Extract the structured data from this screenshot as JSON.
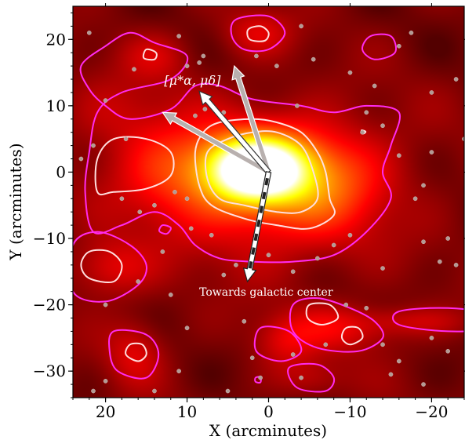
{
  "chart_data": {
    "type": "heatmap",
    "xlabel": "X (arcminutes)",
    "ylabel": "Y (arcminutes)",
    "xlim": [
      24,
      -24
    ],
    "ylim": [
      -34,
      25
    ],
    "x_ticks": [
      20,
      10,
      0,
      -10,
      -20
    ],
    "x_tick_labels": [
      "20",
      "10",
      "0",
      "−10",
      "−20"
    ],
    "y_ticks": [
      20,
      10,
      0,
      -10,
      -20,
      -30
    ],
    "y_tick_labels": [
      "20",
      "10",
      "0",
      "−10",
      "−20",
      "−30"
    ],
    "grid": false,
    "colormap": "hot",
    "peak_center": [
      0.5,
      0.2
    ],
    "density_blobs": [
      {
        "x": 1.5,
        "y": 0.5,
        "sx": 4.0,
        "sy": 3.2,
        "amp": 1.0
      },
      {
        "x": 0.0,
        "y": -2.0,
        "sx": 9.0,
        "sy": 7.0,
        "amp": 0.3
      },
      {
        "x": 12.0,
        "y": 0.5,
        "sx": 5.0,
        "sy": 5.0,
        "amp": 0.18
      },
      {
        "x": -7.0,
        "y": -1.0,
        "sx": 5.0,
        "sy": 5.0,
        "amp": 0.16
      },
      {
        "x": 19.5,
        "y": -14.5,
        "sx": 3.5,
        "sy": 3.0,
        "amp": 0.15
      },
      {
        "x": -8.0,
        "y": -23.5,
        "sx": 5.5,
        "sy": 2.5,
        "amp": 0.14
      },
      {
        "x": 16.5,
        "y": -27.0,
        "sx": 2.5,
        "sy": 3.5,
        "amp": 0.13
      },
      {
        "x": 1.5,
        "y": 21.0,
        "sx": 3.0,
        "sy": 2.5,
        "amp": 0.13
      },
      {
        "x": 14.0,
        "y": 17.5,
        "sx": 3.0,
        "sy": 2.5,
        "amp": 0.1
      },
      {
        "x": -2.0,
        "y": -26.0,
        "sx": 2.5,
        "sy": 2.5,
        "amp": 0.1
      },
      {
        "x": -5.0,
        "y": -31.0,
        "sx": 3.0,
        "sy": 2.0,
        "amp": 0.09
      },
      {
        "x": -18.0,
        "y": -22.5,
        "sx": 5.0,
        "sy": 1.5,
        "amp": 0.09
      },
      {
        "x": 19.0,
        "y": 9.0,
        "sx": 5.0,
        "sy": 4.0,
        "amp": 0.08
      }
    ],
    "contours": [
      {
        "color": "#ff2bf0",
        "points": [
          [
            2,
            11
          ],
          [
            6,
            13
          ],
          [
            9,
            13
          ],
          [
            12,
            9.5
          ],
          [
            17,
            8
          ],
          [
            20,
            10
          ],
          [
            22,
            12.5
          ],
          [
            23,
            16
          ],
          [
            20,
            19
          ],
          [
            17,
            21
          ],
          [
            14,
            19.5
          ],
          [
            10,
            17.5
          ],
          [
            12,
            14
          ],
          [
            18,
            12
          ],
          [
            21,
            9
          ],
          [
            22,
            3
          ],
          [
            22.5,
            -3
          ],
          [
            21.5,
            -9
          ],
          [
            18,
            -8
          ],
          [
            14,
            -6
          ],
          [
            11,
            -8
          ],
          [
            9,
            -11
          ],
          [
            6,
            -13
          ],
          [
            2,
            -13.5
          ],
          [
            -3,
            -13.5
          ],
          [
            -8,
            -12.5
          ],
          [
            -12,
            -9
          ],
          [
            -15,
            -4
          ],
          [
            -14,
            0
          ],
          [
            -15,
            4
          ],
          [
            -16,
            9
          ],
          [
            -12,
            10
          ],
          [
            -8,
            9
          ],
          [
            -4,
            10
          ]
        ]
      },
      {
        "color": "#ff2bf0",
        "points": [
          [
            24,
            -11
          ],
          [
            21,
            -9
          ],
          [
            17,
            -11
          ],
          [
            15,
            -14
          ],
          [
            16,
            -17
          ],
          [
            20,
            -19.5
          ],
          [
            24,
            -18
          ]
        ]
      },
      {
        "color": "#ff2bf0",
        "points": [
          [
            -3,
            -20
          ],
          [
            -6,
            -19
          ],
          [
            -10,
            -20.5
          ],
          [
            -13,
            -22.5
          ],
          [
            -14,
            -25
          ],
          [
            -11,
            -27
          ],
          [
            -6,
            -26.5
          ],
          [
            -3,
            -24
          ]
        ]
      },
      {
        "color": "#ff2bf0",
        "points": [
          [
            -16,
            -21
          ],
          [
            -22,
            -20.5
          ],
          [
            -28,
            -21.5
          ],
          [
            -28,
            -23.5
          ],
          [
            -22,
            -24
          ],
          [
            -16,
            -23
          ]
        ]
      },
      {
        "color": "#ff2bf0",
        "points": [
          [
            19,
            -24
          ],
          [
            15,
            -24.5
          ],
          [
            13.5,
            -27.5
          ],
          [
            15,
            -31
          ],
          [
            18.5,
            -30
          ],
          [
            19.5,
            -27
          ]
        ]
      },
      {
        "color": "#ff2bf0",
        "points": [
          [
            1,
            -23.5
          ],
          [
            -2.5,
            -24
          ],
          [
            -4,
            -27
          ],
          [
            -1.5,
            -28.5
          ],
          [
            1.5,
            -27
          ]
        ]
      },
      {
        "color": "#ff2bf0",
        "points": [
          [
            -2.5,
            -29.5
          ],
          [
            -6,
            -29
          ],
          [
            -8,
            -31
          ],
          [
            -7,
            -33
          ],
          [
            -3.5,
            -32.5
          ]
        ]
      },
      {
        "color": "#ff2bf0",
        "points": [
          [
            4,
            23
          ],
          [
            0,
            23.5
          ],
          [
            -2,
            21
          ],
          [
            0,
            18.5
          ],
          [
            3,
            18.5
          ],
          [
            4.5,
            20.5
          ]
        ]
      },
      {
        "color": "#ff2bf0",
        "points": [
          [
            -12.5,
            20.5
          ],
          [
            -15,
            20.5
          ],
          [
            -15.5,
            18
          ],
          [
            -13,
            17
          ],
          [
            -11.5,
            18.5
          ]
        ]
      },
      {
        "color": "#ff2bf0",
        "points": [
          [
            28,
            23
          ],
          [
            25.5,
            23.5
          ],
          [
            25,
            21
          ],
          [
            27,
            20.5
          ]
        ]
      },
      {
        "color": "#ff2bf0",
        "points": [
          [
            13,
            -8
          ],
          [
            12,
            -8.4
          ],
          [
            12.5,
            -9.3
          ],
          [
            13.4,
            -8.9
          ]
        ]
      },
      {
        "color": "#ff2bf0",
        "points": [
          [
            1.6,
            -31
          ],
          [
            1.0,
            -30.9
          ],
          [
            1.0,
            -31.7
          ],
          [
            1.6,
            -31.6
          ]
        ]
      },
      {
        "color": "#ffdede",
        "points": [
          [
            2,
            8
          ],
          [
            6,
            7.5
          ],
          [
            8,
            6
          ],
          [
            9,
            3
          ],
          [
            8.5,
            -2
          ],
          [
            7,
            -5
          ],
          [
            3,
            -7
          ],
          [
            -1,
            -8
          ],
          [
            -5,
            -8.5
          ],
          [
            -8,
            -6.5
          ],
          [
            -7.5,
            -4
          ],
          [
            -7,
            0
          ],
          [
            -6,
            3
          ],
          [
            -4,
            6
          ],
          [
            -1,
            7.5
          ]
        ]
      },
      {
        "color": "#ffdede",
        "points": [
          [
            15,
            5
          ],
          [
            19,
            5
          ],
          [
            21,
            2
          ],
          [
            21,
            -3
          ],
          [
            19,
            -3
          ],
          [
            15,
            -2.5
          ],
          [
            12,
            -0.5
          ],
          [
            12,
            3
          ]
        ]
      },
      {
        "color": "#ffdede",
        "points": [
          [
            22,
            -12
          ],
          [
            19.5,
            -12
          ],
          [
            18,
            -14
          ],
          [
            19,
            -16.5
          ],
          [
            22,
            -16
          ],
          [
            23,
            -14
          ]
        ]
      },
      {
        "color": "#ffdede",
        "points": [
          [
            -5,
            -20
          ],
          [
            -7.5,
            -20
          ],
          [
            -8.5,
            -22
          ],
          [
            -6.5,
            -23
          ],
          [
            -4.8,
            -22
          ]
        ]
      },
      {
        "color": "#ffdede",
        "points": [
          [
            -9.5,
            -23.5
          ],
          [
            -11,
            -23.5
          ],
          [
            -11.5,
            -25
          ],
          [
            -10,
            -26
          ],
          [
            -9,
            -25
          ]
        ]
      },
      {
        "color": "#ffdede",
        "points": [
          [
            17,
            -26
          ],
          [
            15.5,
            -26
          ],
          [
            15,
            -27.5
          ],
          [
            16,
            -28.5
          ],
          [
            17.5,
            -27.5
          ]
        ]
      },
      {
        "color": "#ffdede",
        "points": [
          [
            2.5,
            21.5
          ],
          [
            1,
            22
          ],
          [
            0,
            21
          ],
          [
            0.5,
            19.8
          ],
          [
            2.3,
            20
          ]
        ]
      },
      {
        "color": "#ffdede",
        "points": [
          [
            15,
            18.5
          ],
          [
            13.8,
            18
          ],
          [
            14,
            17
          ],
          [
            15.3,
            17.2
          ]
        ]
      },
      {
        "color": "#ffdede",
        "points": [
          [
            26.5,
            22
          ],
          [
            25.8,
            22
          ],
          [
            25.8,
            21.3
          ],
          [
            26.5,
            21.3
          ]
        ]
      },
      {
        "color": "#ffdede",
        "points": [
          [
            -11.4,
            6.3
          ],
          [
            -11.9,
            6.1
          ],
          [
            -11.6,
            5.8
          ]
        ]
      },
      {
        "color": "#ffdede",
        "points": [
          [
            5,
            5
          ],
          [
            7.5,
            3
          ],
          [
            7.5,
            -1
          ],
          [
            6,
            -4
          ],
          [
            3,
            -5
          ],
          [
            -1,
            -6
          ],
          [
            -4,
            -6
          ],
          [
            -6,
            -4
          ],
          [
            -5.5,
            0
          ],
          [
            -4,
            4
          ],
          [
            -1,
            6
          ],
          [
            2,
            6
          ]
        ]
      }
    ],
    "arrows": [
      {
        "from": [
          0,
          0
        ],
        "to": [
          13,
          9
        ],
        "style": "gray"
      },
      {
        "from": [
          0,
          0
        ],
        "to": [
          4.2,
          16
        ],
        "style": "gray"
      },
      {
        "from": [
          0,
          0
        ],
        "to": [
          8.5,
          12.2
        ],
        "style": "white"
      },
      {
        "from": [
          0,
          0
        ],
        "to": [
          2.6,
          -16.5
        ],
        "style": "dashed"
      }
    ],
    "annotations": [
      {
        "text": "[μ*α, μδ]",
        "x": 12.8,
        "y": 13.2
      },
      {
        "text": "Towards galactic center",
        "x": 8.5,
        "y": -18.6
      }
    ],
    "stars": [
      [
        22,
        21
      ],
      [
        11,
        20.5
      ],
      [
        8.5,
        16.5
      ],
      [
        8,
        17.5
      ],
      [
        7.8,
        9.5
      ],
      [
        9,
        8.5
      ],
      [
        10,
        16
      ],
      [
        16.5,
        15.5
      ],
      [
        20,
        10.8
      ],
      [
        21.5,
        4
      ],
      [
        17.5,
        5
      ],
      [
        23,
        2
      ],
      [
        18,
        -4
      ],
      [
        15.8,
        -6
      ],
      [
        14,
        -5
      ],
      [
        11.5,
        -3
      ],
      [
        10,
        -4
      ],
      [
        9.5,
        -8.5
      ],
      [
        7,
        -9.5
      ],
      [
        13,
        -12
      ],
      [
        12,
        -18.5
      ],
      [
        20,
        -20
      ],
      [
        16,
        -16.5
      ],
      [
        4,
        -14
      ],
      [
        5.5,
        -15.5
      ],
      [
        3,
        -22.5
      ],
      [
        2,
        -28
      ],
      [
        5,
        -33
      ],
      [
        1,
        -31
      ],
      [
        -3,
        -27.5
      ],
      [
        -7,
        -26
      ],
      [
        -9.5,
        -20
      ],
      [
        -12,
        -20.5
      ],
      [
        -14,
        -26
      ],
      [
        -16,
        -28.5
      ],
      [
        -20,
        -25
      ],
      [
        -22,
        -27
      ],
      [
        -23,
        -14
      ],
      [
        -21,
        -13.5
      ],
      [
        -18,
        -4
      ],
      [
        -19,
        -2
      ],
      [
        -20,
        3
      ],
      [
        -16,
        2.5
      ],
      [
        -12,
        9
      ],
      [
        -11.5,
        6
      ],
      [
        -14,
        7
      ],
      [
        -13,
        13
      ],
      [
        -16,
        19
      ],
      [
        -17.5,
        21
      ],
      [
        -20,
        12
      ],
      [
        -19,
        -10.5
      ],
      [
        -22,
        -10
      ],
      [
        -14,
        -14.5
      ],
      [
        -10,
        -9.5
      ],
      [
        -8,
        -11
      ],
      [
        -6,
        -13
      ],
      [
        -3,
        -15
      ],
      [
        0,
        -12.5
      ],
      [
        -1,
        16
      ],
      [
        1.5,
        17.5
      ],
      [
        -4,
        22
      ],
      [
        -5.5,
        17
      ],
      [
        -10,
        15
      ],
      [
        -3.5,
        10
      ],
      [
        5.5,
        9
      ],
      [
        20,
        -31.5
      ],
      [
        21.5,
        -33
      ],
      [
        11,
        -30
      ],
      [
        -15,
        -30.5
      ],
      [
        -19,
        -32
      ],
      [
        -25,
        -8
      ],
      [
        -24,
        5
      ],
      [
        -23,
        14
      ],
      [
        -4,
        -31
      ],
      [
        14,
        -33
      ],
      [
        10,
        -23.5
      ]
    ]
  }
}
